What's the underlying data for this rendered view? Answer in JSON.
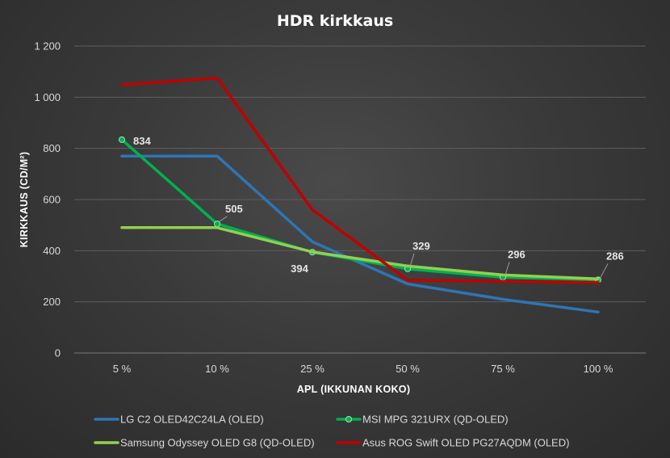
{
  "chart_data": {
    "type": "line",
    "title": "HDR kirkkaus",
    "xlabel": "APL (IKKUNAN KOKO)",
    "ylabel": "KIRKKAUS (CD/M²)",
    "categories": [
      "5 %",
      "10 %",
      "25 %",
      "50 %",
      "75 %",
      "100 %"
    ],
    "ylim": [
      0,
      1200
    ],
    "yticks": [
      0,
      200,
      400,
      600,
      800,
      1000,
      1200
    ],
    "ytick_labels": [
      "0",
      "200",
      "400",
      "600",
      "800",
      "1 000",
      "1 200"
    ],
    "grid": true,
    "legend_position": "bottom",
    "series": [
      {
        "name": "LG C2 OLED42C24LA (OLED)",
        "color": "#2e75b6",
        "values": [
          770,
          770,
          435,
          270,
          210,
          160
        ],
        "markers": false
      },
      {
        "name": "MSI MPG 321URX (QD-OLED)",
        "color": "#00b050",
        "values": [
          834,
          505,
          394,
          329,
          296,
          286
        ],
        "markers": true,
        "data_labels": [
          "834",
          "505",
          "394",
          "329",
          "296",
          "286"
        ]
      },
      {
        "name": "Samsung Odyssey OLED G8 (QD-OLED)",
        "color": "#92d050",
        "values": [
          490,
          490,
          395,
          340,
          305,
          290
        ],
        "markers": false
      },
      {
        "name": "Asus ROG Swift OLED PG27AQDM (OLED)",
        "color": "#c00000",
        "values": [
          1048,
          1075,
          560,
          285,
          280,
          275
        ],
        "markers": false
      }
    ]
  }
}
